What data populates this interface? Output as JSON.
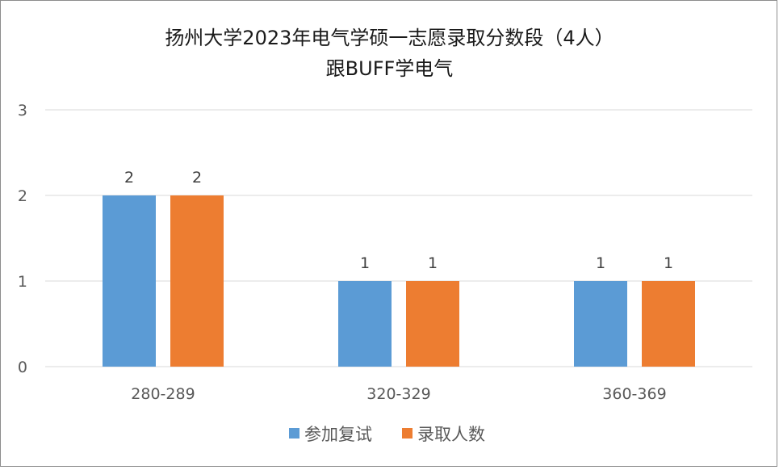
{
  "chart_data": {
    "type": "bar",
    "title_lines": [
      "扬州大学2023年电气学硕一志愿录取分数段（4人）",
      "跟BUFF学电气"
    ],
    "categories": [
      "280-289",
      "320-329",
      "360-369"
    ],
    "series": [
      {
        "name": "参加复试",
        "values": [
          2,
          1,
          1
        ],
        "color": "#5b9bd5"
      },
      {
        "name": "录取人数",
        "values": [
          2,
          1,
          1
        ],
        "color": "#ed7d31"
      }
    ],
    "ylim": [
      0,
      3
    ],
    "yticks": [
      "0",
      "1",
      "2",
      "3"
    ],
    "grid": true,
    "data_labels": true,
    "legend_position": "bottom"
  }
}
